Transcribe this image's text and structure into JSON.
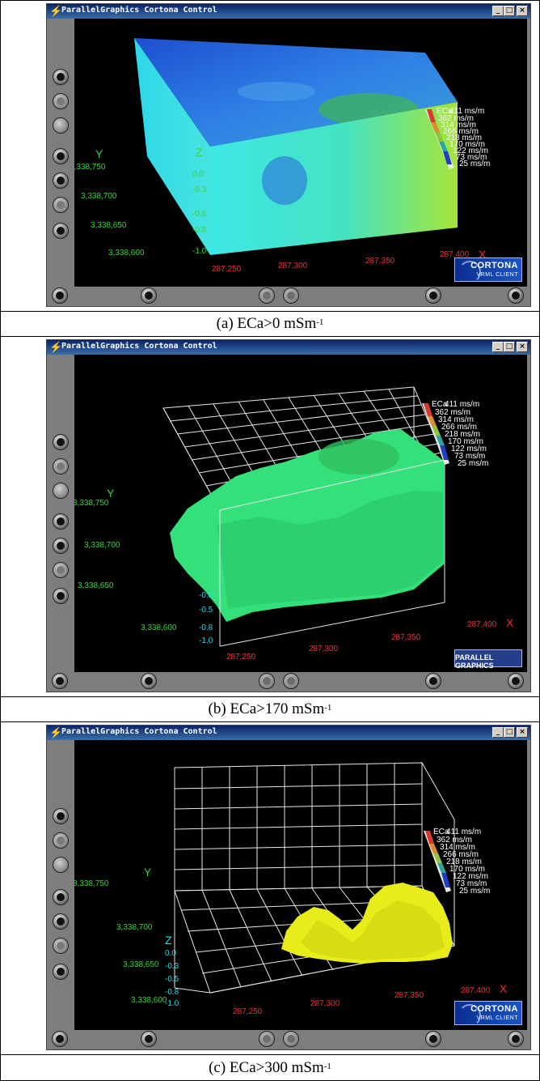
{
  "window": {
    "title": "ParallelGraphics Cortona Control",
    "buttons": {
      "minimize": "_",
      "maximize": "□",
      "close": "×"
    }
  },
  "legend": {
    "title": "ECa",
    "values": [
      "411 ms/m",
      "362 ms/m",
      "314 ms/m",
      "266 ms/m",
      "218 ms/m",
      "170 ms/m",
      "122 ms/m",
      "73 ms/m",
      "25 ms/m"
    ],
    "colors": [
      "#d83a2a",
      "#e06a2a",
      "#d7b236",
      "#8fc43a",
      "#52b94a",
      "#2aa6a0",
      "#2a8ad8",
      "#2a5ad8",
      "#1e3fc0"
    ]
  },
  "axes": {
    "x_ticks": [
      "287,250",
      "287,300",
      "287,350",
      "287,400"
    ],
    "x_letter": "X",
    "y_ticks": [
      "3,338,750",
      "3,338,700",
      "3,338,650",
      "3,338,600"
    ],
    "y_letter": "Y",
    "z_letter": "Z",
    "z_ticks": [
      "0.0",
      "-0.3",
      "-0.5",
      "-0.8",
      "-1.0"
    ]
  },
  "logos": {
    "cortona_line1": "CORTONA",
    "cortona_line2": "VRML CLIENT",
    "pg_line1": "PARALLEL GRAPHICS"
  },
  "panels": [
    {
      "caption_main": "(a) ECa>0 mSm",
      "caption_sup": "-1",
      "logo": "cortona",
      "colors": {
        "top": "#2d6fe0",
        "front": "#3ce0ea",
        "front_right": "#9be23a"
      }
    },
    {
      "caption_main": "(b) ECa>170 mSm",
      "caption_sup": "-1",
      "logo": "pg",
      "colors": {
        "surface": "#33e07a",
        "grid": "#e6e6e6"
      }
    },
    {
      "caption_main": "(c) ECa>300 mSm",
      "caption_sup": "-1",
      "logo": "cortona",
      "colors": {
        "surface": "#e8ec1a",
        "grid": "#e6e6e6"
      }
    }
  ]
}
